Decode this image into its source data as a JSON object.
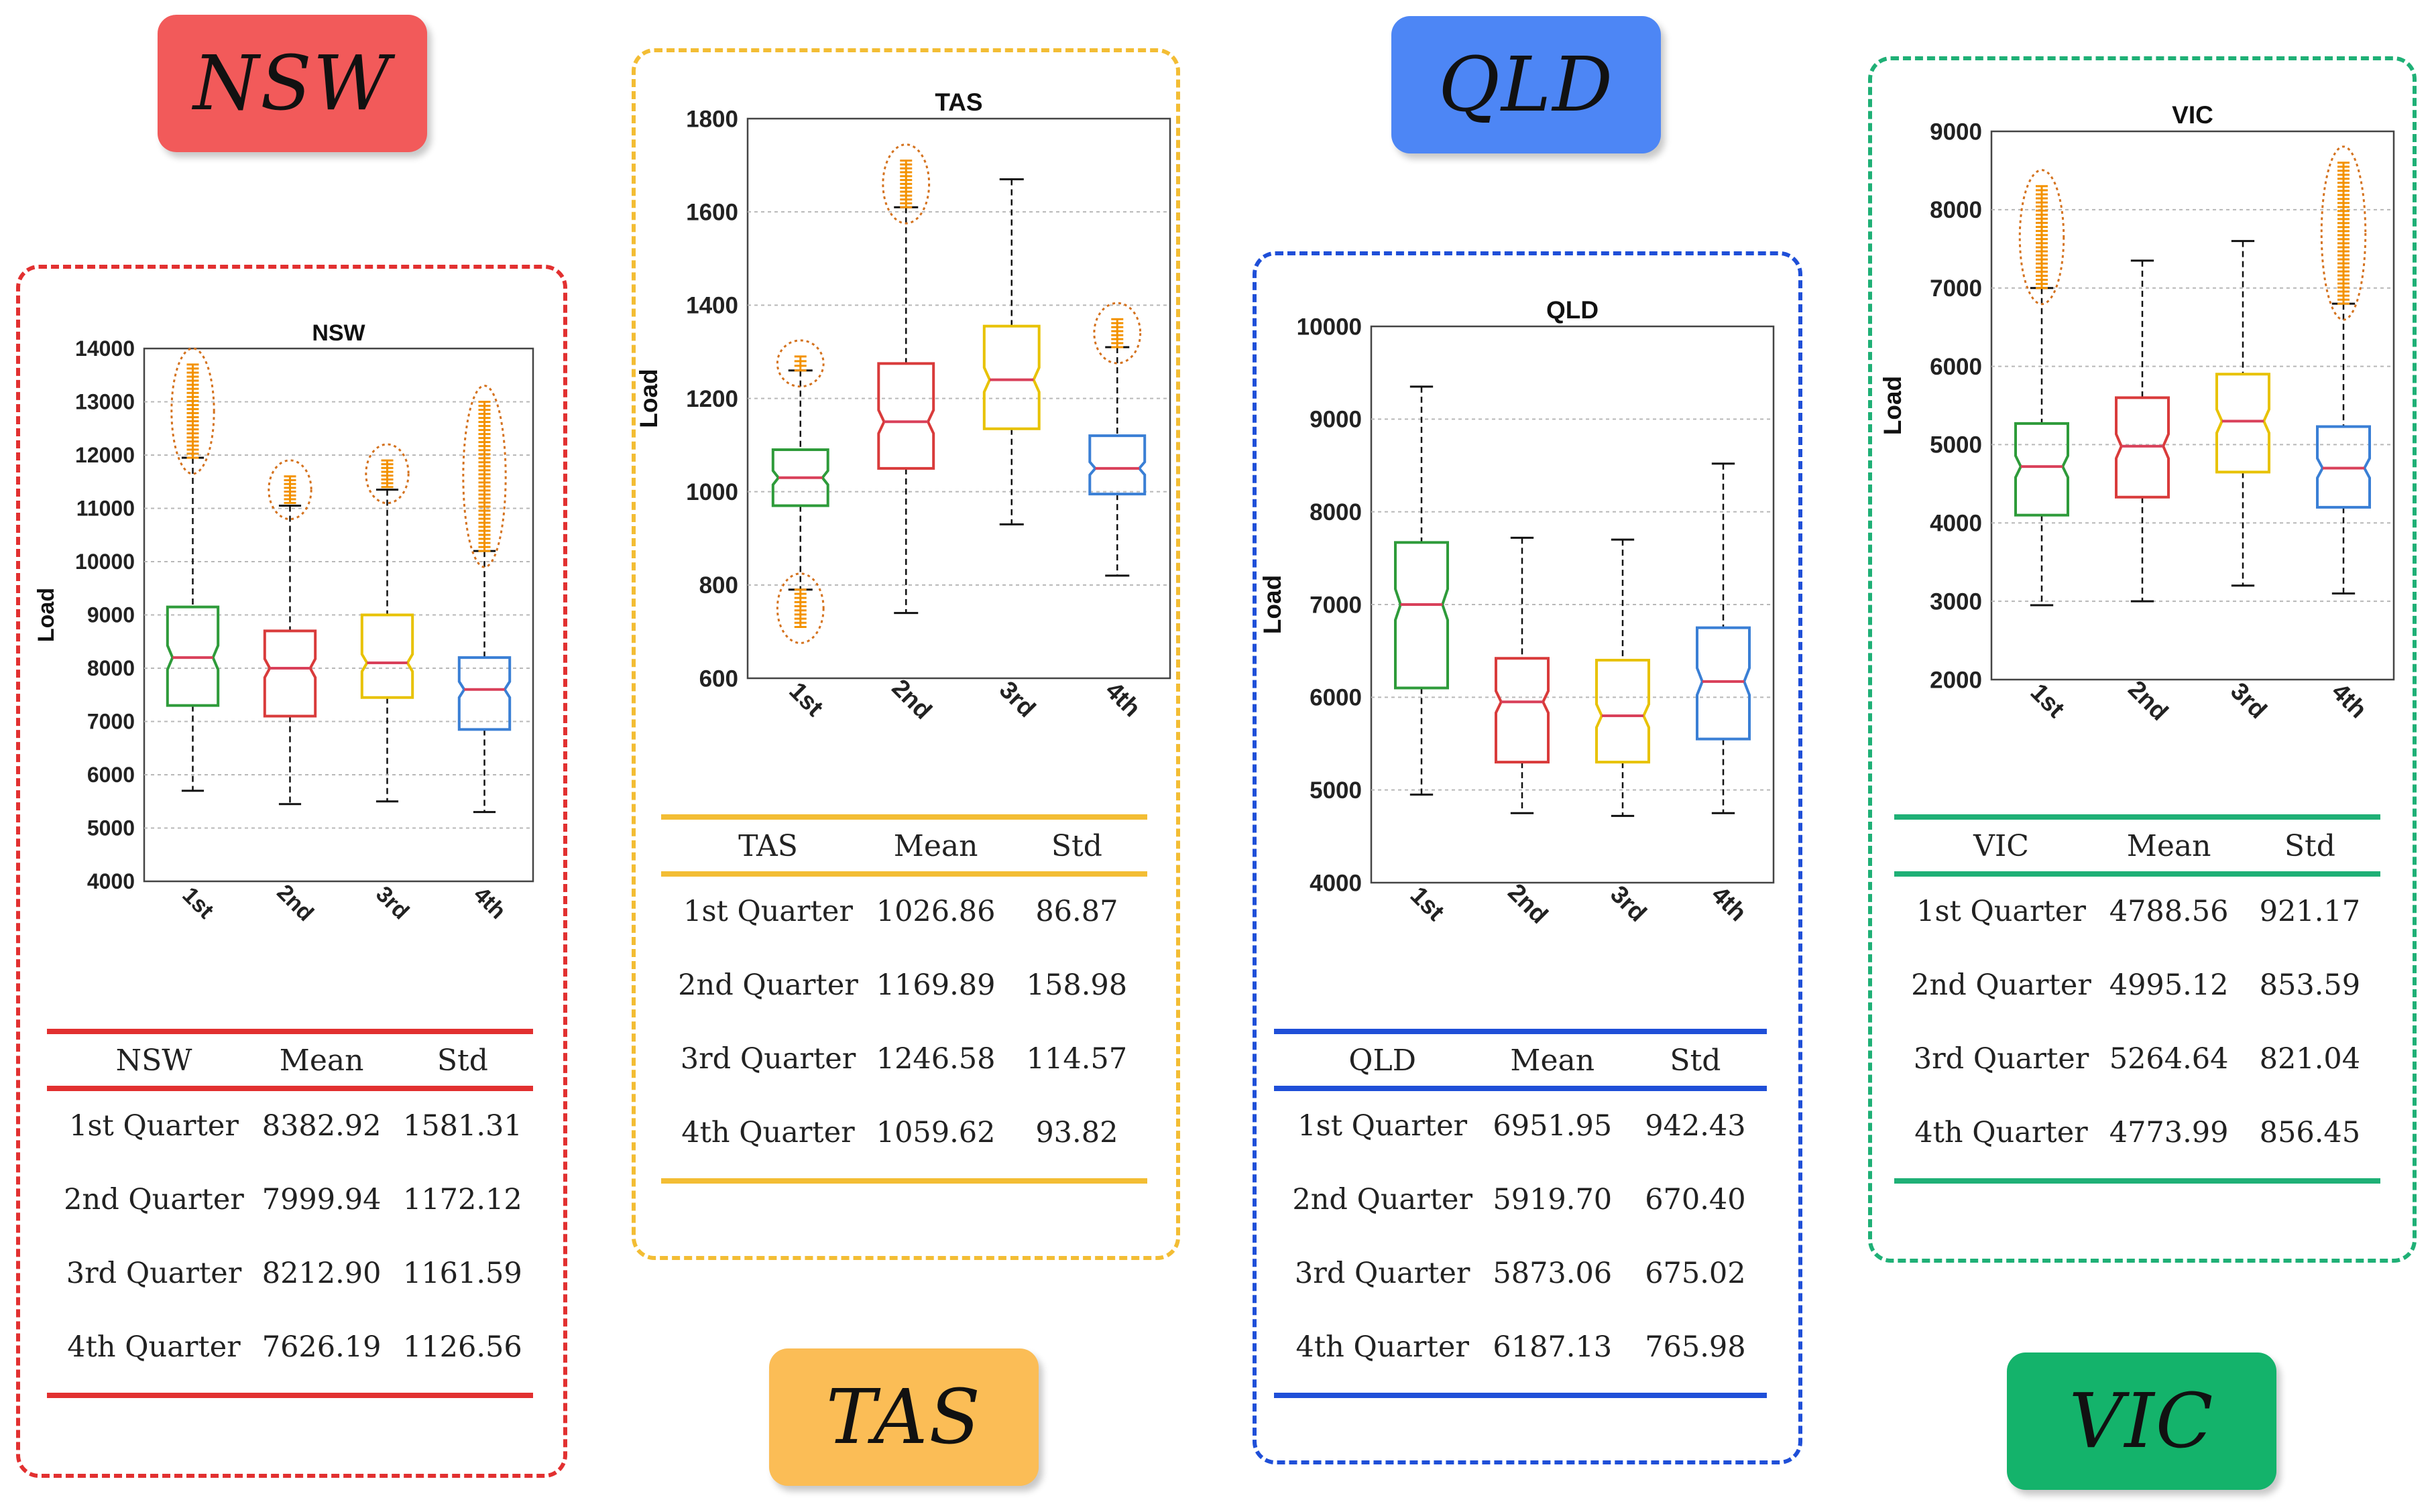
{
  "region_titles": {
    "nsw": "NSW",
    "tas": "TAS",
    "qld": "QLD",
    "vic": "VIC"
  },
  "colors": {
    "nsw": "#e23030",
    "tas": "#f3bd34",
    "qld": "#1f4fd8",
    "vic": "#1fb076",
    "q1": "#2e9b3a",
    "q2": "#d93b3b",
    "q3": "#e8c200",
    "q4": "#3a7fd5",
    "outlier": "#f39200",
    "median": "#d9405a"
  },
  "tables": {
    "nsw": {
      "headers": [
        "NSW",
        "Mean",
        "Std"
      ],
      "rows": [
        [
          "1st Quarter",
          "8382.92",
          "1581.31"
        ],
        [
          "2nd Quarter",
          "7999.94",
          "1172.12"
        ],
        [
          "3rd Quarter",
          "8212.90",
          "1161.59"
        ],
        [
          "4th Quarter",
          "7626.19",
          "1126.56"
        ]
      ]
    },
    "tas": {
      "headers": [
        "TAS",
        "Mean",
        "Std"
      ],
      "rows": [
        [
          "1st Quarter",
          "1026.86",
          "86.87"
        ],
        [
          "2nd Quarter",
          "1169.89",
          "158.98"
        ],
        [
          "3rd Quarter",
          "1246.58",
          "114.57"
        ],
        [
          "4th Quarter",
          "1059.62",
          "93.82"
        ]
      ]
    },
    "qld": {
      "headers": [
        "QLD",
        "Mean",
        "Std"
      ],
      "rows": [
        [
          "1st Quarter",
          "6951.95",
          "942.43"
        ],
        [
          "2nd Quarter",
          "5919.70",
          "670.40"
        ],
        [
          "3rd Quarter",
          "5873.06",
          "675.02"
        ],
        [
          "4th Quarter",
          "6187.13",
          "765.98"
        ]
      ]
    },
    "vic": {
      "headers": [
        "VIC",
        "Mean",
        "Std"
      ],
      "rows": [
        [
          "1st Quarter",
          "4788.56",
          "921.17"
        ],
        [
          "2nd Quarter",
          "4995.12",
          "853.59"
        ],
        [
          "3rd Quarter",
          "5264.64",
          "821.04"
        ],
        [
          "4th Quarter",
          "4773.99",
          "856.45"
        ]
      ]
    }
  },
  "chart_data": [
    {
      "id": "nsw",
      "type": "box",
      "title": "NSW",
      "ylabel": "Load",
      "xlabel": "",
      "categories": [
        "1st",
        "2nd",
        "3rd",
        "4th"
      ],
      "ylim": [
        4000,
        14000
      ],
      "yticks": [
        4000,
        5000,
        6000,
        7000,
        8000,
        9000,
        10000,
        11000,
        12000,
        13000,
        14000
      ],
      "grid": true,
      "boxes": [
        {
          "min": 5700,
          "q1": 7300,
          "median": 8200,
          "q3": 9150,
          "max": 11950,
          "outliers_range": [
            11950,
            13700
          ]
        },
        {
          "min": 5450,
          "q1": 7100,
          "median": 8000,
          "q3": 8700,
          "max": 11050,
          "outliers_range": [
            11100,
            11600
          ]
        },
        {
          "min": 5500,
          "q1": 7450,
          "median": 8100,
          "q3": 9000,
          "max": 11350,
          "outliers_range": [
            11400,
            11900
          ]
        },
        {
          "min": 5300,
          "q1": 6850,
          "median": 7600,
          "q3": 8200,
          "max": 10200,
          "outliers_range": [
            10200,
            13000
          ]
        }
      ]
    },
    {
      "id": "tas",
      "type": "box",
      "title": "TAS",
      "ylabel": "Load",
      "xlabel": "",
      "categories": [
        "1st",
        "2nd",
        "3rd",
        "4th"
      ],
      "ylim": [
        600,
        1800
      ],
      "yticks": [
        600,
        800,
        1000,
        1200,
        1400,
        1600,
        1800
      ],
      "grid": true,
      "boxes": [
        {
          "min": 790,
          "q1": 970,
          "median": 1030,
          "q3": 1090,
          "max": 1260,
          "outliers_range": [
            1260,
            1290
          ],
          "low_outliers_range": [
            710,
            790
          ]
        },
        {
          "min": 740,
          "q1": 1050,
          "median": 1150,
          "q3": 1275,
          "max": 1610,
          "outliers_range": [
            1610,
            1710
          ]
        },
        {
          "min": 930,
          "q1": 1135,
          "median": 1240,
          "q3": 1355,
          "max": 1670,
          "outliers_range": []
        },
        {
          "min": 820,
          "q1": 995,
          "median": 1050,
          "q3": 1120,
          "max": 1310,
          "outliers_range": [
            1310,
            1370
          ]
        }
      ]
    },
    {
      "id": "qld",
      "type": "box",
      "title": "QLD",
      "ylabel": "Load",
      "xlabel": "",
      "categories": [
        "1st",
        "2nd",
        "3rd",
        "4th"
      ],
      "ylim": [
        4000,
        10000
      ],
      "yticks": [
        4000,
        5000,
        6000,
        7000,
        8000,
        9000,
        10000
      ],
      "grid": true,
      "boxes": [
        {
          "min": 4950,
          "q1": 6100,
          "median": 7000,
          "q3": 7670,
          "max": 9350,
          "outliers_range": []
        },
        {
          "min": 4750,
          "q1": 5300,
          "median": 5950,
          "q3": 6420,
          "max": 7720,
          "outliers_range": []
        },
        {
          "min": 4720,
          "q1": 5300,
          "median": 5800,
          "q3": 6400,
          "max": 7700,
          "outliers_range": []
        },
        {
          "min": 4750,
          "q1": 5550,
          "median": 6170,
          "q3": 6750,
          "max": 8520,
          "outliers_range": []
        }
      ]
    },
    {
      "id": "vic",
      "type": "box",
      "title": "VIC",
      "ylabel": "Load",
      "xlabel": "",
      "categories": [
        "1st",
        "2nd",
        "3rd",
        "4th"
      ],
      "ylim": [
        2000,
        9000
      ],
      "yticks": [
        2000,
        3000,
        4000,
        5000,
        6000,
        7000,
        8000,
        9000
      ],
      "grid": true,
      "boxes": [
        {
          "min": 2950,
          "q1": 4100,
          "median": 4720,
          "q3": 5270,
          "max": 7000,
          "outliers_range": [
            7000,
            8300
          ]
        },
        {
          "min": 3000,
          "q1": 4330,
          "median": 4980,
          "q3": 5600,
          "max": 7350,
          "outliers_range": []
        },
        {
          "min": 3200,
          "q1": 4650,
          "median": 5300,
          "q3": 5900,
          "max": 7600,
          "outliers_range": []
        },
        {
          "min": 3100,
          "q1": 4200,
          "median": 4700,
          "q3": 5230,
          "max": 6800,
          "outliers_range": [
            6800,
            8600
          ]
        }
      ]
    }
  ]
}
